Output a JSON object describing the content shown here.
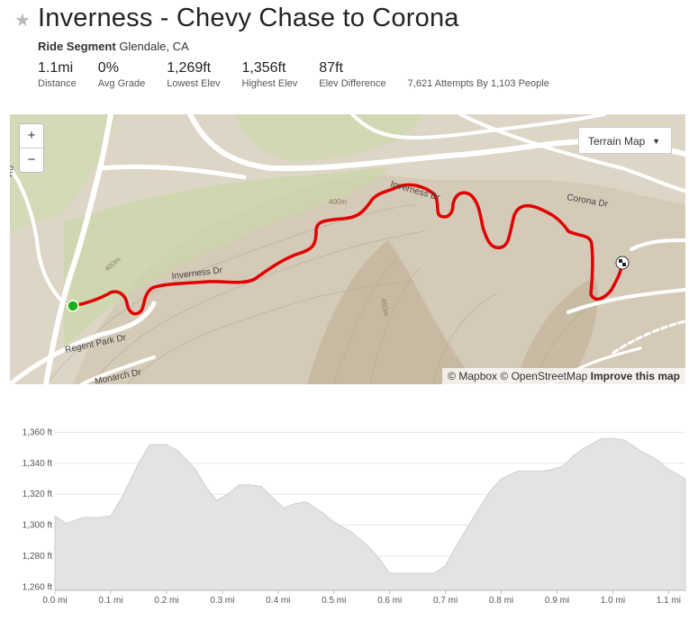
{
  "header": {
    "star_icon": "star-icon",
    "title": "Inverness - Chevy Chase to Corona",
    "type_label": "Ride Segment",
    "location": "Glendale, CA"
  },
  "stats": [
    {
      "value": "1.1mi",
      "label": "Distance"
    },
    {
      "value": "0%",
      "label": "Avg Grade"
    },
    {
      "value": "1,269ft",
      "label": "Lowest Elev"
    },
    {
      "value": "1,356ft",
      "label": "Highest Elev"
    },
    {
      "value": "87ft",
      "label": "Elev Difference"
    }
  ],
  "attempts": "7,621 Attempts By 1,103 People",
  "map": {
    "zoom_in": "+",
    "zoom_out": "−",
    "terrain_label": "Terrain Map",
    "route_color": "#e00000",
    "start_color": "#1bb11b",
    "street_labels": [
      "Inverness Dr",
      "Inverness Dr",
      "Corona Dr",
      "Regent Park Dr",
      "Monarch Dr",
      "Rd",
      "400m",
      "400m",
      "450m"
    ],
    "attribution": {
      "mapbox": "© Mapbox",
      "osm": "© OpenStreetMap",
      "improve": "Improve this map"
    }
  },
  "chart_data": {
    "type": "area",
    "x": [
      0,
      0.02,
      0.05,
      0.08,
      0.1,
      0.12,
      0.15,
      0.17,
      0.2,
      0.22,
      0.25,
      0.27,
      0.29,
      0.31,
      0.33,
      0.35,
      0.37,
      0.39,
      0.41,
      0.43,
      0.45,
      0.48,
      0.5,
      0.53,
      0.56,
      0.58,
      0.6,
      0.62,
      0.66,
      0.68,
      0.7,
      0.72,
      0.75,
      0.78,
      0.8,
      0.83,
      0.86,
      0.88,
      0.91,
      0.93,
      0.95,
      0.98,
      1.0,
      1.02,
      1.05,
      1.08,
      1.1,
      1.13
    ],
    "y": [
      1306,
      1301,
      1305,
      1305,
      1306,
      1318,
      1340,
      1352,
      1352,
      1348,
      1337,
      1325,
      1316,
      1320,
      1326,
      1326,
      1325,
      1318,
      1311,
      1314,
      1315,
      1308,
      1302,
      1296,
      1287,
      1279,
      1269,
      1269,
      1269,
      1269,
      1274,
      1287,
      1305,
      1322,
      1330,
      1335,
      1335,
      1335,
      1338,
      1345,
      1350,
      1356,
      1356,
      1355,
      1348,
      1342,
      1336,
      1330
    ],
    "xlim": [
      0,
      1.13
    ],
    "ylim": [
      1258,
      1366
    ],
    "yticks": [
      1260,
      1280,
      1300,
      1320,
      1340,
      1360
    ],
    "ytick_labels": [
      "1,260 ft",
      "1,280 ft",
      "1,300 ft",
      "1,320 ft",
      "1,340 ft",
      "1,360 ft"
    ],
    "xticks": [
      0,
      0.1,
      0.2,
      0.3,
      0.4,
      0.5,
      0.6,
      0.7,
      0.8,
      0.9,
      1.0,
      1.1
    ],
    "xtick_labels": [
      "0.0 mi",
      "0.1 mi",
      "0.2 mi",
      "0.3 mi",
      "0.4 mi",
      "0.5 mi",
      "0.6 mi",
      "0.7 mi",
      "0.8 mi",
      "0.9 mi",
      "1.0 mi",
      "1.1 mi"
    ],
    "grid": true,
    "fill_color": "#e3e3e3"
  }
}
